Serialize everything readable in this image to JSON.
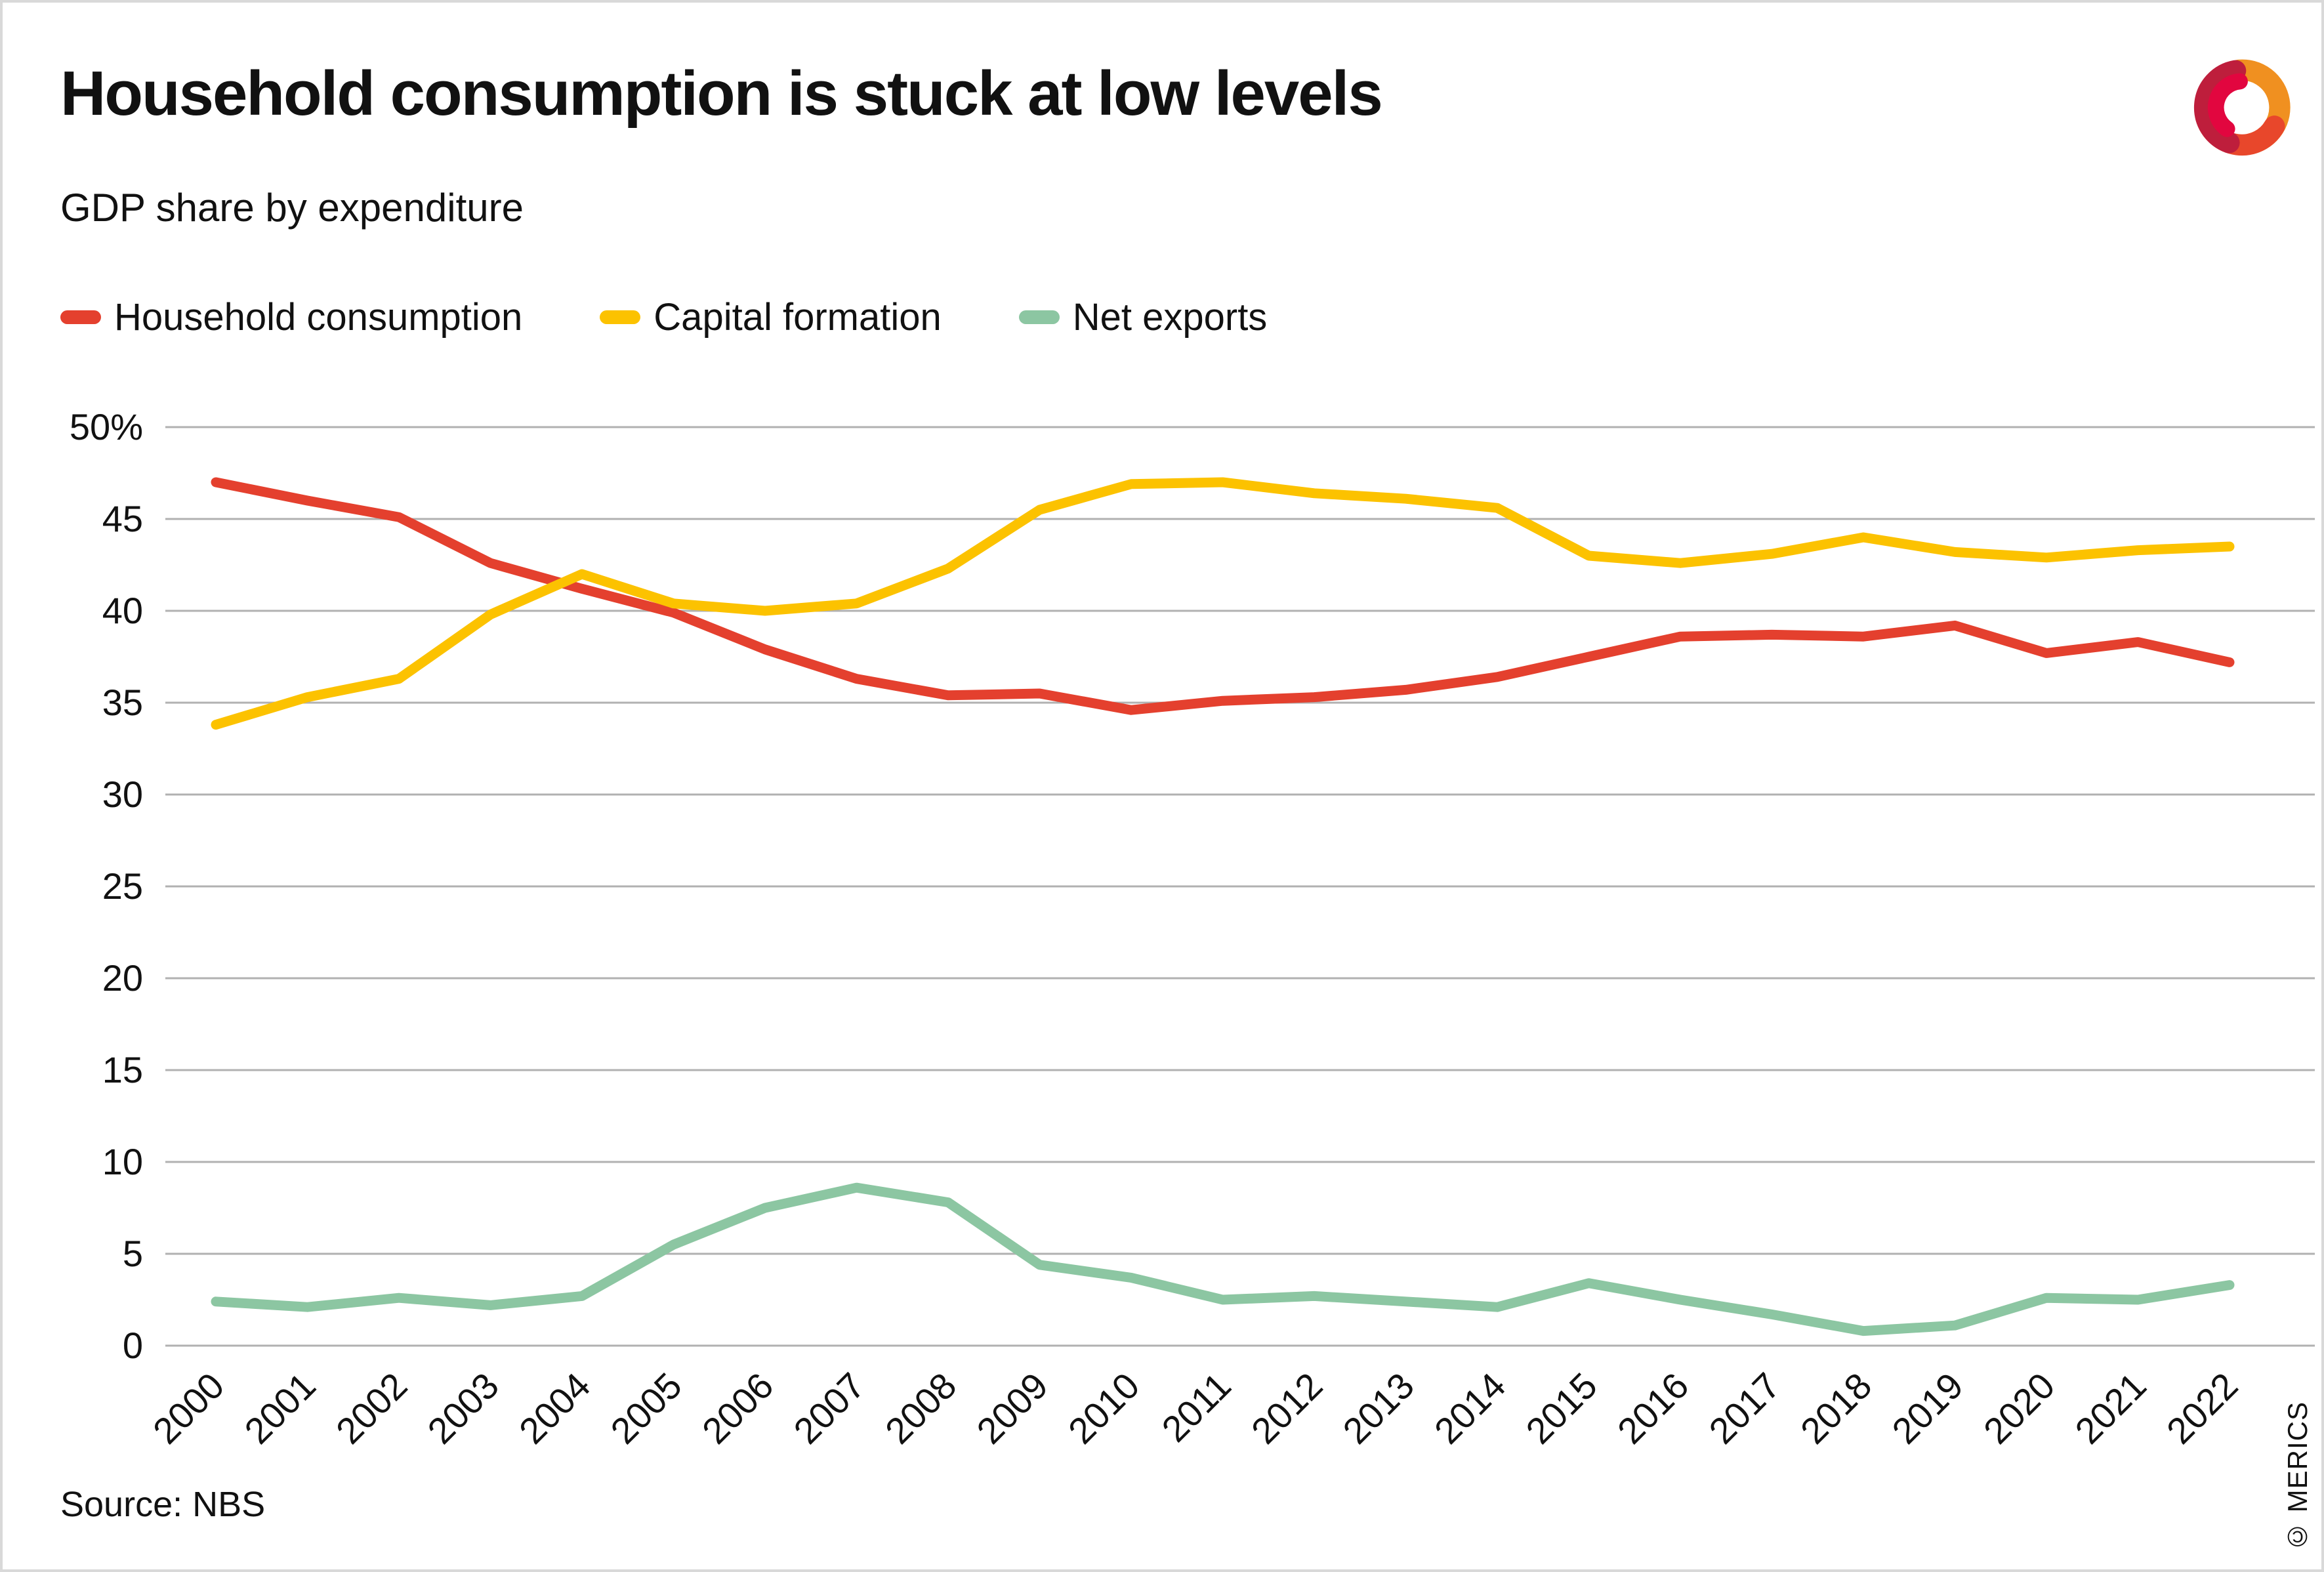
{
  "header": {
    "title": "Household consumption is stuck at low levels",
    "subtitle": "GDP share by expenditure"
  },
  "footer": {
    "source": "Source: NBS",
    "credit": "© MERICS"
  },
  "logo": {
    "name": "merics-logo",
    "colors": [
      "#BE1E3C",
      "#E8472B",
      "#F09020",
      "#E2063F"
    ]
  },
  "colors": {
    "gridline": "#b1b1b1",
    "text": "#111111"
  },
  "chart_data": {
    "type": "line",
    "title": "Household consumption is stuck at low levels",
    "subtitle": "GDP share by expenditure",
    "xlabel": "",
    "ylabel": "",
    "ylim": [
      0,
      50
    ],
    "grid": "horizontal",
    "legend_position": "top-left",
    "x": [
      2000,
      2001,
      2002,
      2003,
      2004,
      2005,
      2006,
      2007,
      2008,
      2009,
      2010,
      2011,
      2012,
      2013,
      2014,
      2015,
      2016,
      2017,
      2018,
      2019,
      2020,
      2021,
      2022
    ],
    "yticks": [
      {
        "v": 50,
        "label": "50%"
      },
      {
        "v": 45,
        "label": "45"
      },
      {
        "v": 40,
        "label": "40"
      },
      {
        "v": 35,
        "label": "35"
      },
      {
        "v": 30,
        "label": "30"
      },
      {
        "v": 25,
        "label": "25"
      },
      {
        "v": 20,
        "label": "20"
      },
      {
        "v": 15,
        "label": "15"
      },
      {
        "v": 10,
        "label": "10"
      },
      {
        "v": 5,
        "label": "5"
      },
      {
        "v": 0,
        "label": "0"
      }
    ],
    "series": [
      {
        "name": "Household consumption",
        "color": "#E4402E",
        "values": [
          47.0,
          46.0,
          45.1,
          42.6,
          41.2,
          39.9,
          37.9,
          36.3,
          35.4,
          35.5,
          34.6,
          35.1,
          35.3,
          35.7,
          36.4,
          37.5,
          38.6,
          38.7,
          38.6,
          39.2,
          37.7,
          38.3,
          37.2
        ]
      },
      {
        "name": "Capital formation",
        "color": "#FCC200",
        "values": [
          33.8,
          35.3,
          36.3,
          39.8,
          42.0,
          40.4,
          40.0,
          40.4,
          42.3,
          45.5,
          46.9,
          47.0,
          46.4,
          46.1,
          45.6,
          43.0,
          42.6,
          43.1,
          44.0,
          43.2,
          42.9,
          43.3,
          43.5
        ]
      },
      {
        "name": "Net exports",
        "color": "#8CC6A2",
        "values": [
          2.4,
          2.1,
          2.6,
          2.2,
          2.7,
          5.5,
          7.5,
          8.6,
          7.8,
          4.4,
          3.7,
          2.5,
          2.7,
          2.4,
          2.1,
          3.4,
          2.5,
          1.7,
          0.8,
          1.1,
          2.6,
          2.5,
          3.3
        ]
      }
    ]
  }
}
